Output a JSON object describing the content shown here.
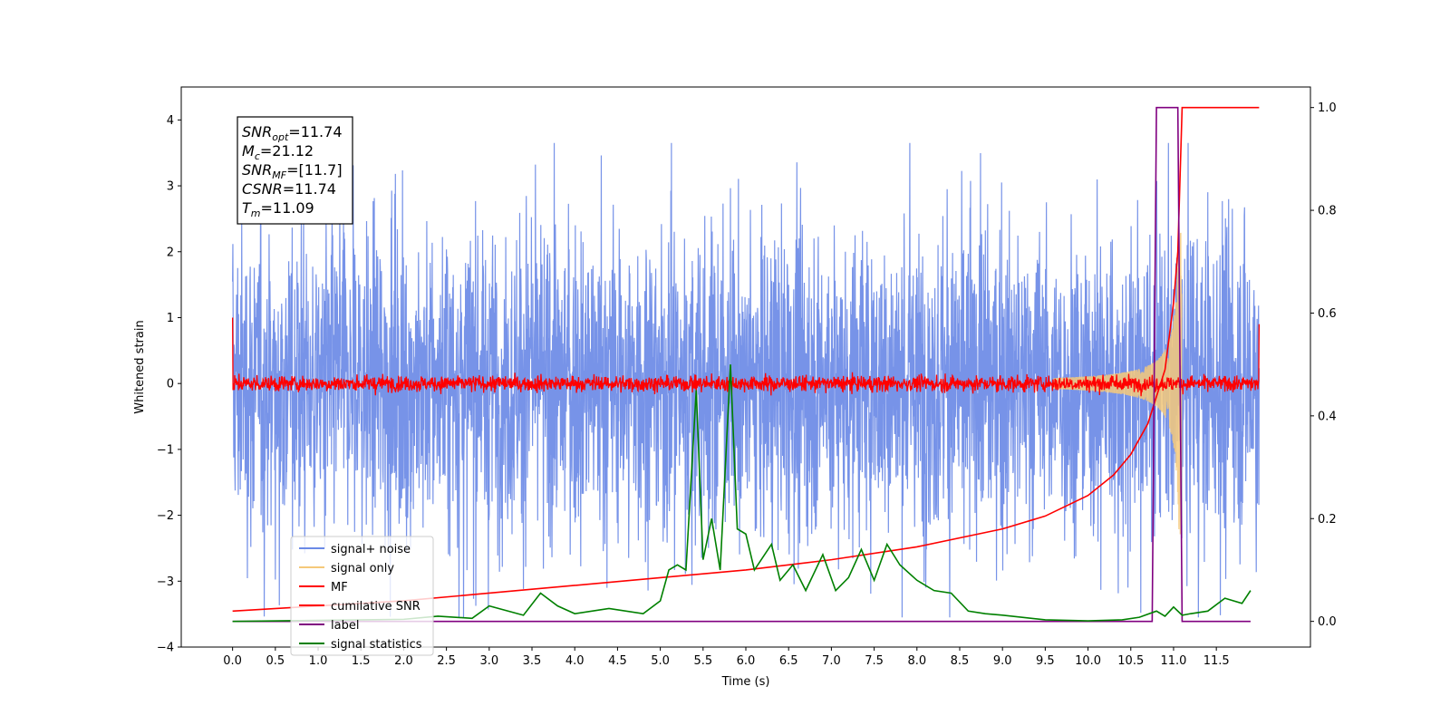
{
  "chart_data": {
    "type": "line",
    "title": "",
    "xlabel": "Time (s)",
    "ylabel": "Whitened strain",
    "xlim": [
      -0.6,
      12.6
    ],
    "ylim": [
      -4.0,
      4.5
    ],
    "y2lim": [
      -0.05,
      1.04
    ],
    "x_ticks": [
      0.0,
      0.5,
      1.0,
      1.5,
      2.0,
      2.5,
      3.0,
      3.5,
      4.0,
      4.5,
      5.0,
      5.5,
      6.0,
      6.5,
      7.0,
      7.5,
      8.0,
      8.5,
      9.0,
      9.5,
      10.0,
      10.5,
      11.0,
      11.5
    ],
    "x_tick_labels": [
      "0.0",
      "0.5",
      "1.0",
      "1.5",
      "2.0",
      "2.5",
      "3.0",
      "3.5",
      "4.0",
      "4.5",
      "5.0",
      "5.5",
      "6.0",
      "6.5",
      "7.0",
      "7.5",
      "8.0",
      "8.5",
      "9.0",
      "9.5",
      "10.0",
      "10.5",
      "11.0",
      "11.5"
    ],
    "y_ticks": [
      -4,
      -3,
      -2,
      -1,
      0,
      1,
      2,
      3,
      4
    ],
    "y_tick_labels": [
      "−4",
      "−3",
      "−2",
      "−1",
      "0",
      "1",
      "2",
      "3",
      "4"
    ],
    "y2_ticks": [
      0.0,
      0.2,
      0.4,
      0.6,
      0.8,
      1.0
    ],
    "y2_tick_labels": [
      "0.0",
      "0.2",
      "0.4",
      "0.6",
      "0.8",
      "1.0"
    ],
    "grid": false,
    "legend_position": "lower-left",
    "series": [
      {
        "name": "signal+ noise",
        "color": "#6b8ae6",
        "axis": "left",
        "note": "whitened noise, approx amplitude ±2.5 with spikes to ±3.5, spanning 0.0–12.0 s"
      },
      {
        "name": "signal only",
        "color": "#f5c97a",
        "axis": "left",
        "note": "chirp growing from ~9.8 s to peak ±2.3 near 11.05 s"
      },
      {
        "name": "MF",
        "color": "#ff0000",
        "axis": "left",
        "note": "matched-filter output ~±0.15 around 0"
      },
      {
        "name": "cumilative SNR",
        "color": "#ff0000",
        "axis": "right",
        "x": [
          0.0,
          1.0,
          2.0,
          3.0,
          4.0,
          5.0,
          6.0,
          7.0,
          8.0,
          9.0,
          9.5,
          10.0,
          10.3,
          10.5,
          10.7,
          10.9,
          11.0,
          11.05,
          11.1,
          12.0
        ],
        "y": [
          0.02,
          0.03,
          0.04,
          0.055,
          0.07,
          0.085,
          0.1,
          0.12,
          0.145,
          0.18,
          0.205,
          0.245,
          0.285,
          0.325,
          0.385,
          0.49,
          0.62,
          0.72,
          1.0,
          1.0
        ]
      },
      {
        "name": "label",
        "color": "#800080",
        "axis": "right",
        "x": [
          0.0,
          10.75,
          10.8,
          11.05,
          11.1,
          11.9
        ],
        "y": [
          0.0,
          0.0,
          1.0,
          1.0,
          0.0,
          0.0
        ]
      },
      {
        "name": "signal statistics",
        "color": "#008000",
        "axis": "right",
        "x": [
          0.0,
          1.0,
          2.0,
          2.4,
          2.8,
          3.0,
          3.4,
          3.6,
          3.8,
          4.0,
          4.4,
          4.8,
          5.0,
          5.1,
          5.2,
          5.3,
          5.42,
          5.5,
          5.6,
          5.7,
          5.82,
          5.9,
          6.0,
          6.1,
          6.3,
          6.4,
          6.55,
          6.7,
          6.9,
          7.05,
          7.2,
          7.35,
          7.5,
          7.65,
          7.8,
          8.0,
          8.2,
          8.4,
          8.6,
          8.8,
          9.0,
          9.5,
          10.0,
          10.4,
          10.6,
          10.8,
          10.9,
          11.0,
          11.1,
          11.2,
          11.4,
          11.6,
          11.8,
          11.9
        ],
        "y": [
          0.0,
          0.002,
          0.004,
          0.01,
          0.006,
          0.03,
          0.012,
          0.055,
          0.03,
          0.015,
          0.025,
          0.015,
          0.04,
          0.1,
          0.11,
          0.1,
          0.45,
          0.12,
          0.2,
          0.1,
          0.5,
          0.18,
          0.17,
          0.1,
          0.15,
          0.08,
          0.11,
          0.06,
          0.13,
          0.06,
          0.085,
          0.14,
          0.08,
          0.15,
          0.11,
          0.08,
          0.06,
          0.055,
          0.02,
          0.015,
          0.012,
          0.003,
          0.001,
          0.003,
          0.008,
          0.02,
          0.01,
          0.028,
          0.012,
          0.015,
          0.02,
          0.045,
          0.035,
          0.06
        ]
      }
    ],
    "annotation_lines": [
      {
        "label": "SNR",
        "sub": "opt",
        "value": "=11.74",
        "italic_label": true
      },
      {
        "label": "M",
        "sub": "c",
        "value": "=21.12",
        "italic_label": true
      },
      {
        "label": "SNR",
        "sub": "MF",
        "value": "=[11.7]",
        "italic_label": true
      },
      {
        "label": "CSNR",
        "sub": "",
        "value": "=11.74",
        "italic_label": true
      },
      {
        "label": "T",
        "sub": "m",
        "value": "=11.09",
        "italic_label": true
      }
    ]
  }
}
